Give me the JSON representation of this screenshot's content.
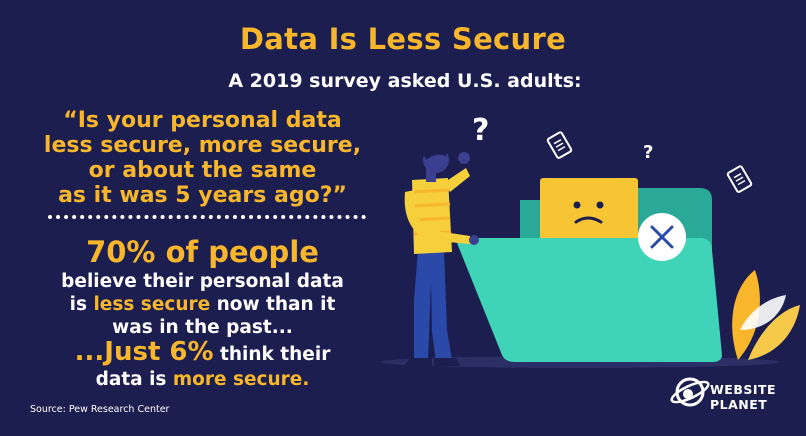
{
  "title": "Data Is Less Secure",
  "subtitle": "A 2019 survey asked U.S. adults:",
  "question": {
    "line1": "“Is your personal data",
    "line2": "less secure, more secure,",
    "line3": "or about the same",
    "line4": "as it was 5 years ago?”"
  },
  "stat1": {
    "headline": "70% of people",
    "line1": "believe their personal data",
    "line2_pre": "is ",
    "line2_hl": "less secure",
    "line2_post": " now than it",
    "line3": "was in the past..."
  },
  "stat2": {
    "headline": "...Just 6%",
    "line1_post": " think their",
    "line2_pre": "data is ",
    "line2_hl": "more secure."
  },
  "source": "Source: Pew Research Center",
  "logo": {
    "line1": "WEBSITE",
    "line2": "PLANET"
  },
  "illustration": {
    "question_mark": "?",
    "icons": [
      "question-mark-icon",
      "document-icon",
      "sad-face-icon",
      "close-icon",
      "leaf-icon",
      "person"
    ],
    "colors": {
      "background": "#1b1e4e",
      "accent": "#f7b62b",
      "folder": "#3fd3b8",
      "folder_back": "#2aa999",
      "shirt": "#f5d03b",
      "pants": "#2b49a8"
    }
  }
}
